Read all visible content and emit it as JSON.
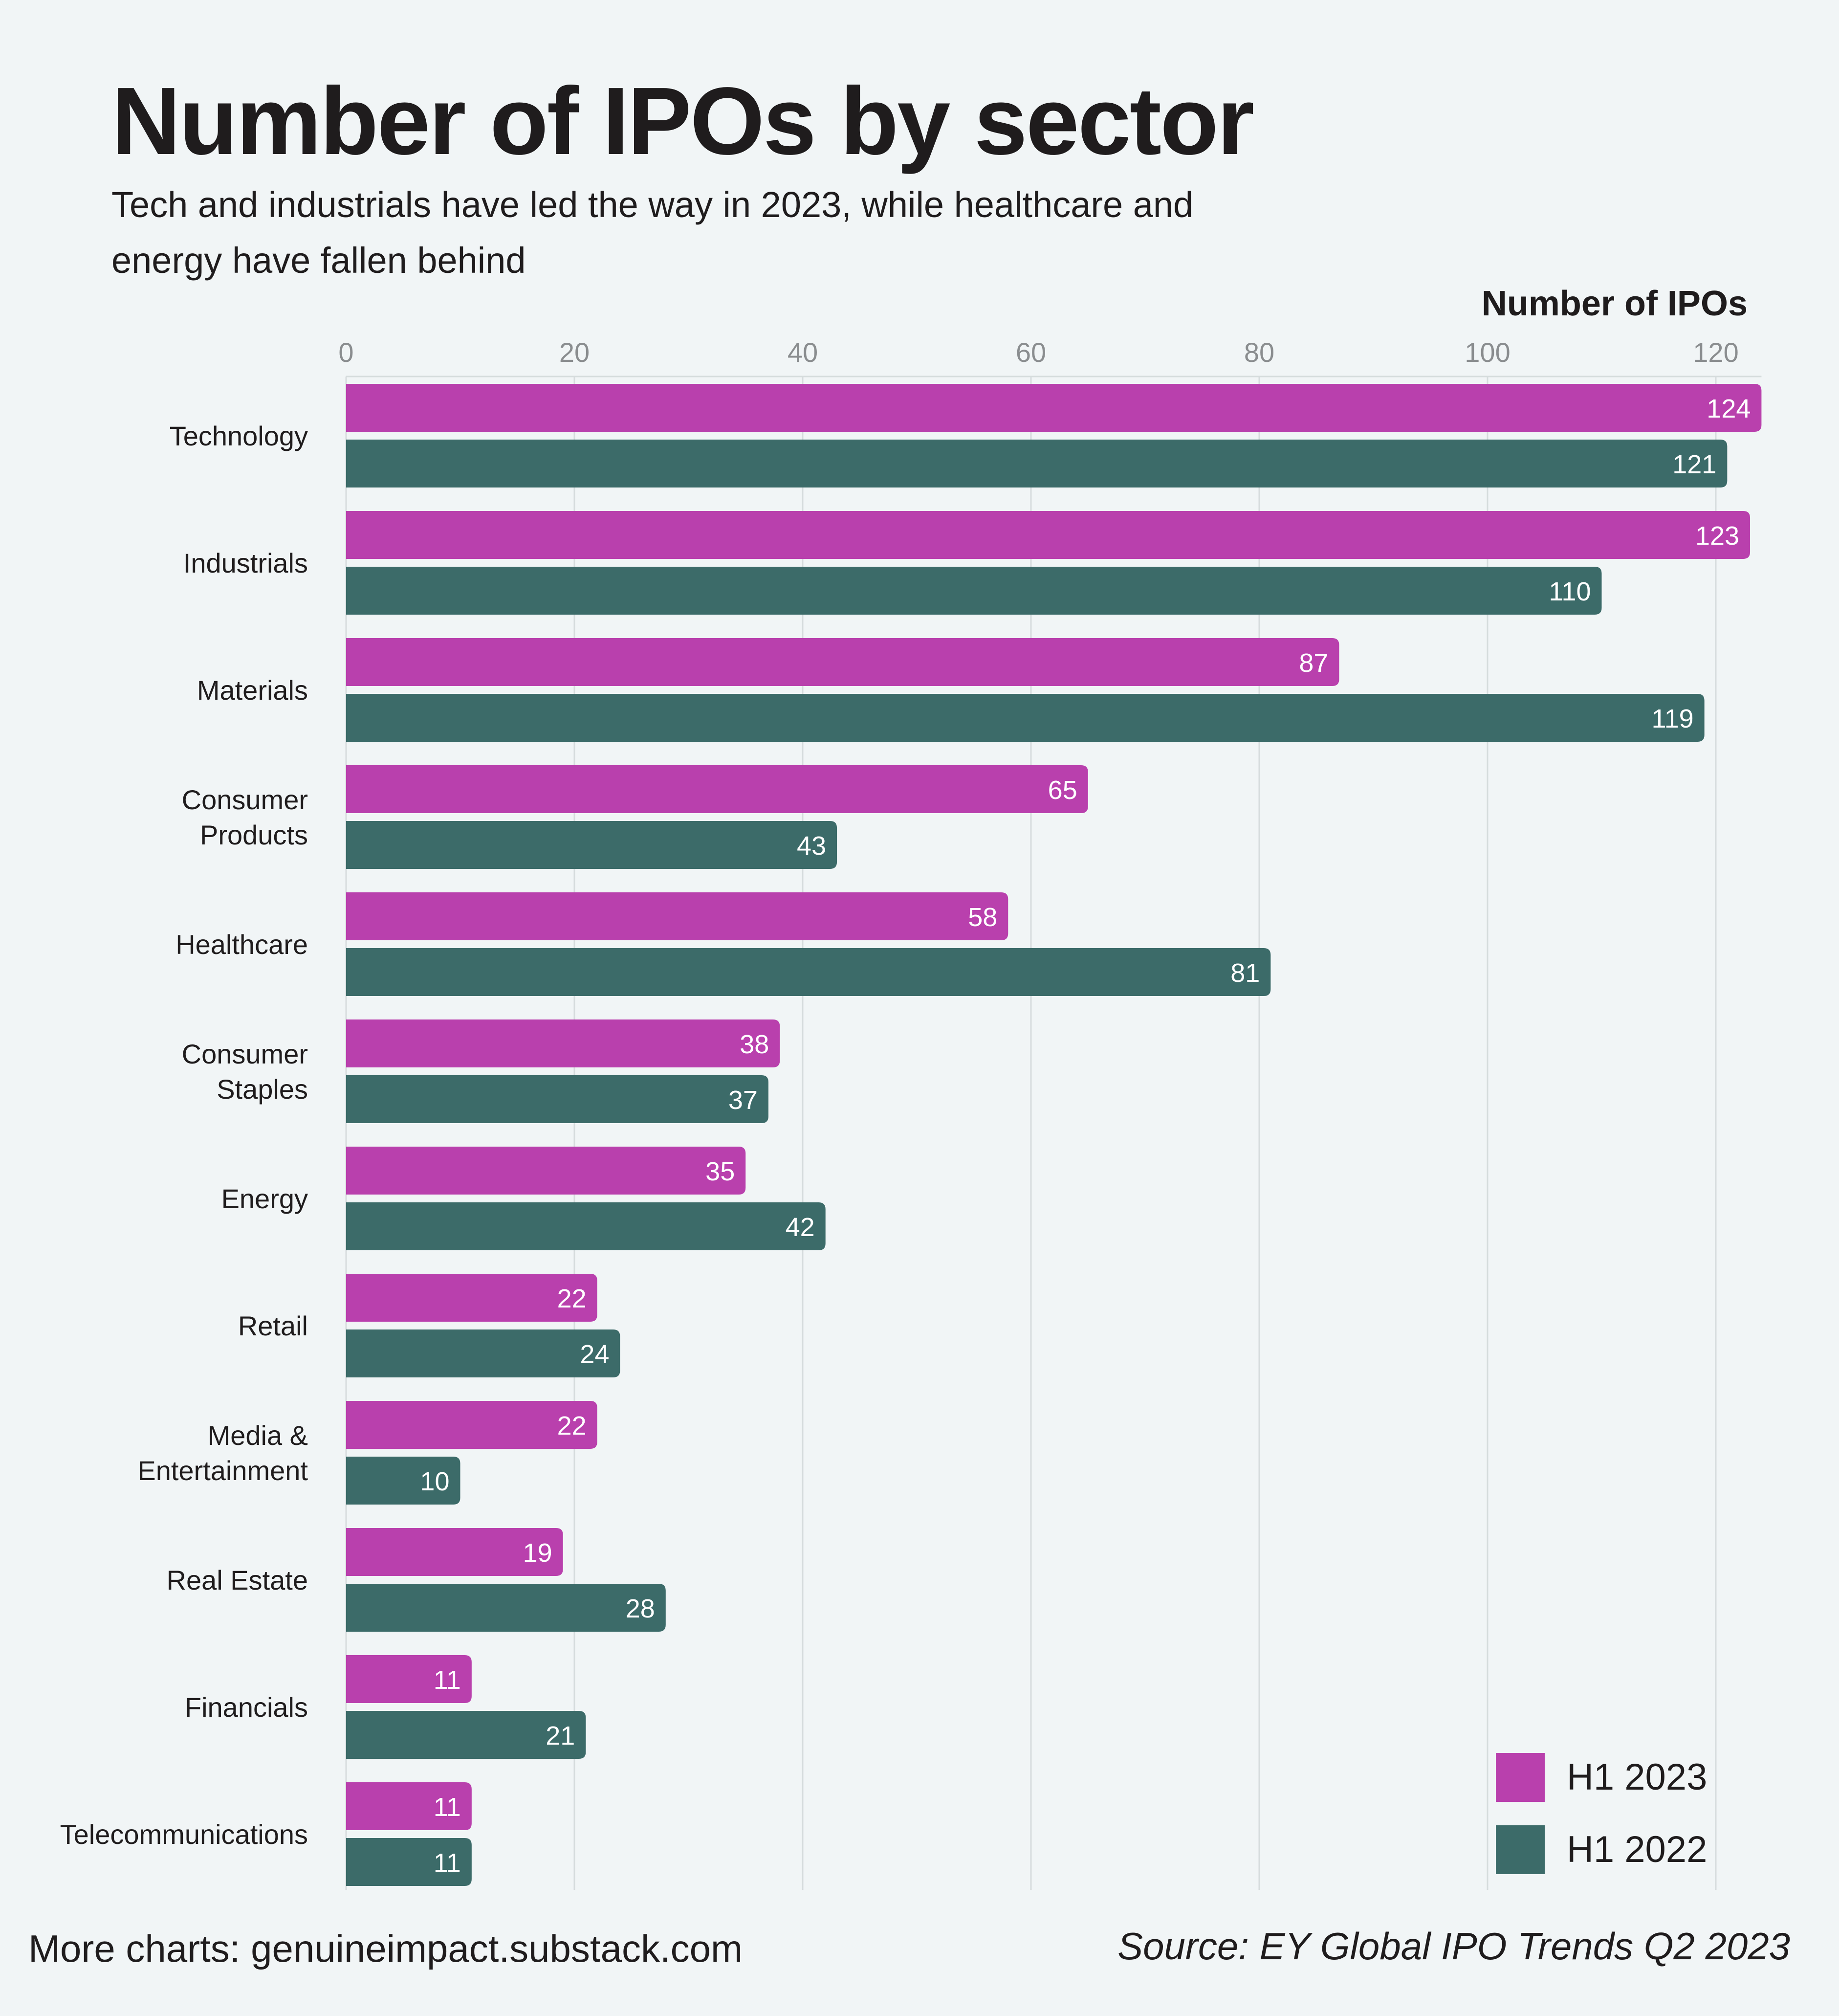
{
  "page": {
    "title": "Number of IPOs by sector",
    "subtitle": "Tech and industrials have led the way in 2023, while healthcare and energy have fallen behind",
    "footer_left": "More charts: genuineimpact.substack.com",
    "footer_right": "Source: EY Global IPO Trends Q2 2023"
  },
  "chart_data": {
    "type": "bar",
    "orientation": "horizontal",
    "xlabel": "Number of IPOs",
    "xlim": [
      0,
      124
    ],
    "xticks": [
      0,
      20,
      40,
      60,
      80,
      100,
      120
    ],
    "grid": true,
    "legend_position": "bottom-right",
    "categories": [
      "Technology",
      "Industrials",
      "Materials",
      "Consumer Products",
      "Healthcare",
      "Consumer Staples",
      "Energy",
      "Retail",
      "Media & Entertainment",
      "Real Estate",
      "Financials",
      "Telecommunications"
    ],
    "series": [
      {
        "name": "H1 2023",
        "color": "#b940ad",
        "values": [
          124,
          123,
          87,
          65,
          58,
          38,
          35,
          22,
          22,
          19,
          11,
          11
        ]
      },
      {
        "name": "H1 2022",
        "color": "#3c6b69",
        "values": [
          121,
          110,
          119,
          43,
          81,
          37,
          42,
          24,
          10,
          28,
          21,
          11
        ]
      }
    ]
  }
}
